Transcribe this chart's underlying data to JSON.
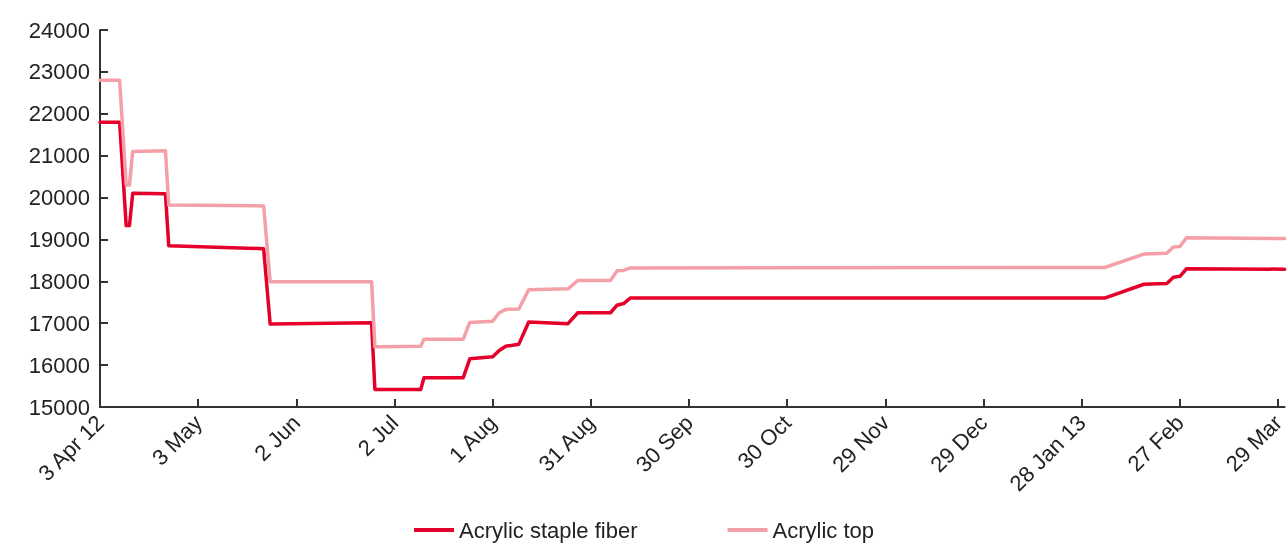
{
  "chart_data": {
    "type": "line",
    "xlim": [
      "2012-04-03",
      "2013-03-31"
    ],
    "xticks": [
      {
        "value": "2012-04-03",
        "label": "3 Apr 12"
      },
      {
        "value": "2012-05-03",
        "label": "3 May"
      },
      {
        "value": "2012-06-02",
        "label": "2 Jun"
      },
      {
        "value": "2012-07-02",
        "label": "2 Jul"
      },
      {
        "value": "2012-08-01",
        "label": "1 Aug"
      },
      {
        "value": "2012-08-31",
        "label": "31 Aug"
      },
      {
        "value": "2012-09-30",
        "label": "30 Sep"
      },
      {
        "value": "2012-10-30",
        "label": "30 Oct"
      },
      {
        "value": "2012-11-29",
        "label": "29 Nov"
      },
      {
        "value": "2012-12-29",
        "label": "29 Dec"
      },
      {
        "value": "2013-01-28",
        "label": "28 Jan 13"
      },
      {
        "value": "2013-02-27",
        "label": "27 Feb"
      },
      {
        "value": "2013-03-29",
        "label": "29 Mar"
      }
    ],
    "ylim": [
      15000,
      24000
    ],
    "yticks": [
      15000,
      16000,
      17000,
      18000,
      19000,
      20000,
      21000,
      22000,
      23000,
      24000
    ],
    "grid": false,
    "legend": "bottom",
    "marker": "none",
    "line_style": "solid",
    "x": [
      "2012-04-03",
      "2012-04-09",
      "2012-04-11",
      "2012-04-12",
      "2012-04-13",
      "2012-04-23",
      "2012-04-24",
      "2012-05-23",
      "2012-05-25",
      "2012-06-25",
      "2012-06-26",
      "2012-07-10",
      "2012-07-11",
      "2012-07-23",
      "2012-07-25",
      "2012-08-01",
      "2012-08-03",
      "2012-08-05",
      "2012-08-09",
      "2012-08-12",
      "2012-08-24",
      "2012-08-27",
      "2012-09-06",
      "2012-09-08",
      "2012-09-10",
      "2012-09-12",
      "2013-02-04",
      "2013-02-16",
      "2013-02-23",
      "2013-02-25",
      "2013-02-27",
      "2013-03-01",
      "2013-03-31"
    ],
    "series": [
      {
        "name": "Acrylic staple fiber",
        "color": "#e4002b",
        "values": [
          21800,
          21800,
          19330,
          19330,
          20100,
          20090,
          18850,
          18780,
          16980,
          17010,
          15420,
          15420,
          15700,
          15700,
          16150,
          16200,
          16350,
          16450,
          16500,
          17030,
          16990,
          17250,
          17250,
          17430,
          17470,
          17600,
          17600,
          17930,
          17950,
          18100,
          18120,
          18300,
          18290
        ]
      },
      {
        "name": "Acrylic top",
        "color": "#f4a0a8",
        "values": [
          22800,
          22800,
          20300,
          20300,
          21100,
          21120,
          19820,
          19800,
          17990,
          17990,
          16440,
          16450,
          16620,
          16620,
          17020,
          17050,
          17250,
          17330,
          17340,
          17800,
          17820,
          18020,
          18020,
          18250,
          18260,
          18320,
          18330,
          18650,
          18670,
          18820,
          18830,
          19040,
          19020
        ]
      }
    ]
  }
}
